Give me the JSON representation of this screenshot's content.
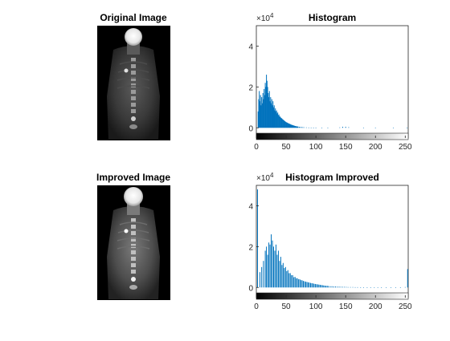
{
  "figure": {
    "panels": [
      {
        "id": "original-image",
        "kind": "image",
        "title": "Original Image",
        "variant": "original"
      },
      {
        "id": "improved-image",
        "kind": "image",
        "title": "Improved Image",
        "variant": "improved"
      }
    ]
  },
  "chart_data": [
    {
      "type": "bar",
      "title": "Histogram",
      "xlabel": "",
      "ylabel": "",
      "y_exponent_label": "×10",
      "y_exponent_power": "4",
      "xlim": [
        0,
        255
      ],
      "ylim_display": [
        -0.5,
        5.0
      ],
      "xticks": [
        "0",
        "50",
        "100",
        "150",
        "200",
        "250"
      ],
      "yticks": [
        "0",
        "2",
        "4"
      ],
      "bar_color": "#0072BD",
      "colorbar": "grayscale 0-255",
      "bins": [
        [
          3,
          0.8
        ],
        [
          4,
          1.4
        ],
        [
          5,
          1.8
        ],
        [
          6,
          1.3
        ],
        [
          7,
          1.6
        ],
        [
          8,
          1.1
        ],
        [
          9,
          1.5
        ],
        [
          10,
          1.2
        ],
        [
          11,
          1.7
        ],
        [
          12,
          1.4
        ],
        [
          13,
          1.9
        ],
        [
          14,
          1.6
        ],
        [
          15,
          2.2
        ],
        [
          16,
          2.0
        ],
        [
          17,
          2.6
        ],
        [
          18,
          2.3
        ],
        [
          19,
          2.0
        ],
        [
          20,
          1.7
        ],
        [
          21,
          1.5
        ],
        [
          22,
          1.8
        ],
        [
          23,
          1.3
        ],
        [
          24,
          1.5
        ],
        [
          25,
          1.2
        ],
        [
          26,
          1.4
        ],
        [
          27,
          1.1
        ],
        [
          28,
          1.3
        ],
        [
          29,
          1.0
        ],
        [
          30,
          1.1
        ],
        [
          31,
          0.85
        ],
        [
          32,
          0.95
        ],
        [
          33,
          0.8
        ],
        [
          34,
          0.85
        ],
        [
          35,
          0.7
        ],
        [
          36,
          0.75
        ],
        [
          37,
          0.62
        ],
        [
          38,
          0.65
        ],
        [
          39,
          0.55
        ],
        [
          40,
          0.55
        ],
        [
          41,
          0.5
        ],
        [
          42,
          0.48
        ],
        [
          43,
          0.45
        ],
        [
          44,
          0.42
        ],
        [
          45,
          0.4
        ],
        [
          46,
          0.37
        ],
        [
          47,
          0.35
        ],
        [
          48,
          0.32
        ],
        [
          49,
          0.3
        ],
        [
          50,
          0.28
        ],
        [
          51,
          0.26
        ],
        [
          52,
          0.25
        ],
        [
          53,
          0.23
        ],
        [
          54,
          0.22
        ],
        [
          55,
          0.2
        ],
        [
          56,
          0.19
        ],
        [
          57,
          0.18
        ],
        [
          58,
          0.16
        ],
        [
          59,
          0.15
        ],
        [
          60,
          0.14
        ],
        [
          61,
          0.13
        ],
        [
          62,
          0.12
        ],
        [
          63,
          0.11
        ],
        [
          64,
          0.1
        ],
        [
          65,
          0.09
        ],
        [
          66,
          0.08
        ],
        [
          67,
          0.075
        ],
        [
          68,
          0.07
        ],
        [
          69,
          0.065
        ],
        [
          70,
          0.06
        ],
        [
          72,
          0.05
        ],
        [
          74,
          0.04
        ],
        [
          76,
          0.035
        ],
        [
          78,
          0.03
        ],
        [
          80,
          0.025
        ],
        [
          84,
          0.02
        ],
        [
          88,
          0.015
        ],
        [
          92,
          0.012
        ],
        [
          96,
          0.01
        ],
        [
          100,
          0.008
        ],
        [
          110,
          0.006
        ],
        [
          120,
          0.005
        ],
        [
          140,
          0.02
        ],
        [
          145,
          0.05
        ],
        [
          150,
          0.05
        ],
        [
          155,
          0.03
        ],
        [
          180,
          0.005
        ],
        [
          200,
          0.004
        ],
        [
          230,
          0.004
        ],
        [
          253,
          0.01
        ]
      ]
    },
    {
      "type": "bar",
      "title": "Histogram Improved",
      "xlabel": "",
      "ylabel": "",
      "y_exponent_label": "×10",
      "y_exponent_power": "4",
      "xlim": [
        0,
        255
      ],
      "ylim_display": [
        -0.5,
        5.0
      ],
      "xticks": [
        "0",
        "50",
        "100",
        "150",
        "200",
        "250"
      ],
      "yticks": [
        "0",
        "2",
        "4"
      ],
      "bar_color": "#0072BD",
      "colorbar": "grayscale 0-255",
      "bins": [
        [
          2,
          4.8
        ],
        [
          6,
          0.75
        ],
        [
          9,
          1.0
        ],
        [
          12,
          1.3
        ],
        [
          15,
          1.8
        ],
        [
          17,
          2.0
        ],
        [
          19,
          1.6
        ],
        [
          21,
          2.2
        ],
        [
          23,
          2.1
        ],
        [
          25,
          2.6
        ],
        [
          27,
          2.3
        ],
        [
          29,
          2.0
        ],
        [
          31,
          1.8
        ],
        [
          33,
          2.1
        ],
        [
          35,
          1.6
        ],
        [
          37,
          1.8
        ],
        [
          39,
          1.3
        ],
        [
          41,
          1.5
        ],
        [
          43,
          1.1
        ],
        [
          45,
          1.2
        ],
        [
          47,
          0.95
        ],
        [
          49,
          1.0
        ],
        [
          51,
          0.8
        ],
        [
          53,
          0.85
        ],
        [
          55,
          0.7
        ],
        [
          57,
          0.7
        ],
        [
          59,
          0.6
        ],
        [
          61,
          0.6
        ],
        [
          63,
          0.5
        ],
        [
          65,
          0.52
        ],
        [
          67,
          0.45
        ],
        [
          69,
          0.45
        ],
        [
          71,
          0.4
        ],
        [
          73,
          0.4
        ],
        [
          75,
          0.36
        ],
        [
          77,
          0.35
        ],
        [
          79,
          0.32
        ],
        [
          81,
          0.3
        ],
        [
          83,
          0.28
        ],
        [
          85,
          0.27
        ],
        [
          87,
          0.25
        ],
        [
          89,
          0.24
        ],
        [
          91,
          0.22
        ],
        [
          93,
          0.21
        ],
        [
          95,
          0.2
        ],
        [
          97,
          0.18
        ],
        [
          99,
          0.17
        ],
        [
          101,
          0.16
        ],
        [
          103,
          0.15
        ],
        [
          105,
          0.14
        ],
        [
          107,
          0.13
        ],
        [
          109,
          0.12
        ],
        [
          111,
          0.11
        ],
        [
          113,
          0.1
        ],
        [
          115,
          0.09
        ],
        [
          117,
          0.08
        ],
        [
          119,
          0.08
        ],
        [
          121,
          0.07
        ],
        [
          124,
          0.06
        ],
        [
          127,
          0.06
        ],
        [
          130,
          0.05
        ],
        [
          133,
          0.05
        ],
        [
          136,
          0.04
        ],
        [
          139,
          0.04
        ],
        [
          142,
          0.035
        ],
        [
          145,
          0.03
        ],
        [
          148,
          0.03
        ],
        [
          151,
          0.025
        ],
        [
          154,
          0.02
        ],
        [
          158,
          0.02
        ],
        [
          162,
          0.02
        ],
        [
          166,
          0.015
        ],
        [
          170,
          0.015
        ],
        [
          175,
          0.012
        ],
        [
          180,
          0.01
        ],
        [
          186,
          0.01
        ],
        [
          192,
          0.01
        ],
        [
          198,
          0.008
        ],
        [
          204,
          0.008
        ],
        [
          210,
          0.008
        ],
        [
          218,
          0.008
        ],
        [
          226,
          0.008
        ],
        [
          234,
          0.01
        ],
        [
          242,
          0.01
        ],
        [
          250,
          0.02
        ],
        [
          254,
          0.9
        ]
      ]
    }
  ]
}
